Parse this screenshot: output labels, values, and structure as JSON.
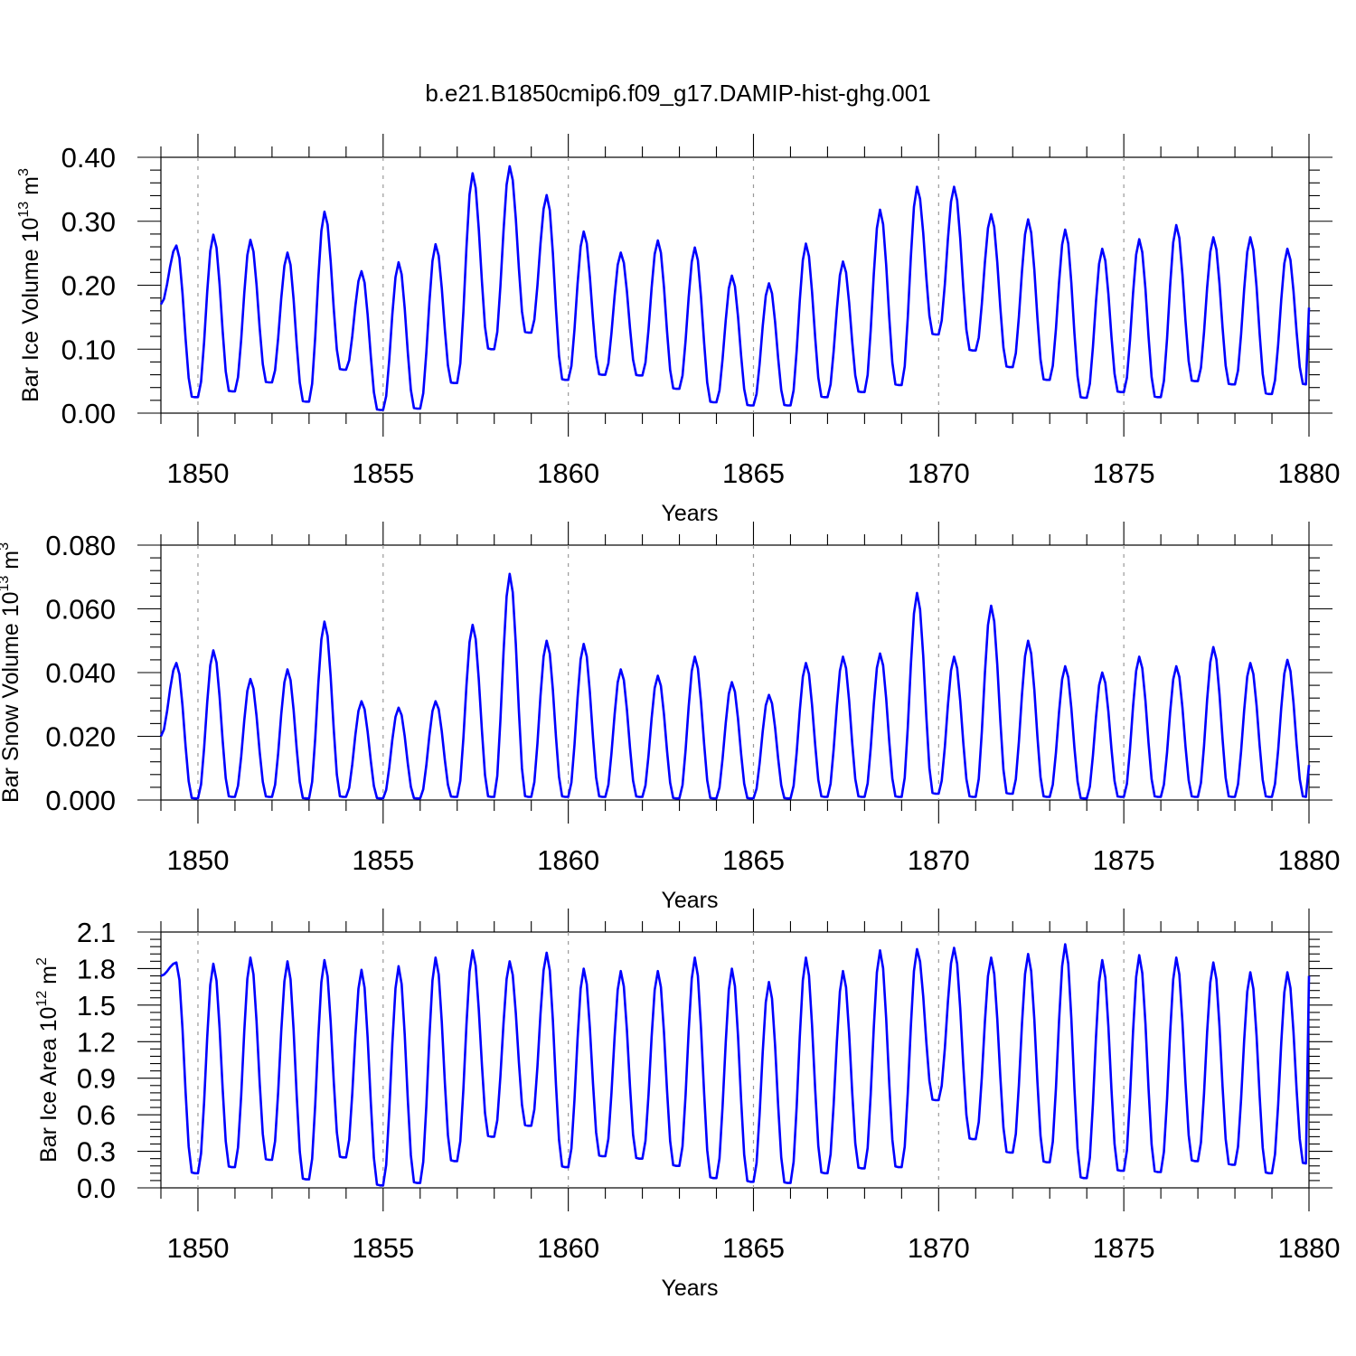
{
  "title": "b.e21.B1850cmip6.f09_g17.DAMIP-hist-ghg.001",
  "colors": {
    "series": "#0000ff",
    "grid": "#9a9a9a",
    "frame": "#000000"
  },
  "chart_data": [
    {
      "type": "line",
      "ylabel_main": "Bar Ice Volume 10",
      "ylabel_exp": "13",
      "ylabel_unit": " m",
      "ylabel_unit_exp": "3",
      "xlabel": "Years",
      "xlim": [
        1849.0,
        1880.0
      ],
      "ylim": [
        0.0,
        0.4
      ],
      "x_ticks": [
        1850,
        1855,
        1860,
        1865,
        1870,
        1875,
        1880
      ],
      "x_tick_labels": [
        "1850",
        "1855",
        "1860",
        "1865",
        "1870",
        "1875",
        "1880"
      ],
      "y_ticks": [
        0.0,
        0.1,
        0.2,
        0.3,
        0.4
      ],
      "y_tick_labels": [
        "0.00",
        "0.10",
        "0.20",
        "0.30",
        "0.40"
      ],
      "grid": "vertical dashed at major x ticks",
      "annual_max": [
        0.262,
        0.279,
        0.271,
        0.251,
        0.315,
        0.222,
        0.236,
        0.264,
        0.375,
        0.386,
        0.341,
        0.284,
        0.251,
        0.27,
        0.259,
        0.215,
        0.203,
        0.265,
        0.237,
        0.318,
        0.354,
        0.354,
        0.311,
        0.303,
        0.287,
        0.257,
        0.272,
        0.294,
        0.275,
        0.275,
        0.257
      ],
      "annual_min": [
        0.025,
        0.034,
        0.048,
        0.018,
        0.068,
        0.005,
        0.007,
        0.047,
        0.1,
        0.126,
        0.052,
        0.06,
        0.059,
        0.038,
        0.017,
        0.012,
        0.012,
        0.025,
        0.033,
        0.044,
        0.123,
        0.098,
        0.072,
        0.052,
        0.024,
        0.033,
        0.025,
        0.05,
        0.045,
        0.03,
        0.045
      ],
      "start_value": 0.17,
      "end_value": 0.165
    },
    {
      "type": "line",
      "ylabel_main": "Bar Snow Volume 10",
      "ylabel_exp": "13",
      "ylabel_unit": " m",
      "ylabel_unit_exp": "3",
      "xlabel": "Years",
      "xlim": [
        1849.0,
        1880.0
      ],
      "ylim": [
        0.0,
        0.08
      ],
      "x_ticks": [
        1850,
        1855,
        1860,
        1865,
        1870,
        1875,
        1880
      ],
      "x_tick_labels": [
        "1850",
        "1855",
        "1860",
        "1865",
        "1870",
        "1875",
        "1880"
      ],
      "y_ticks": [
        0.0,
        0.02,
        0.04,
        0.06,
        0.08
      ],
      "y_tick_labels": [
        "0.000",
        "0.020",
        "0.040",
        "0.060",
        "0.080"
      ],
      "grid": "vertical dashed at major x ticks",
      "annual_max": [
        0.043,
        0.047,
        0.038,
        0.041,
        0.056,
        0.031,
        0.029,
        0.031,
        0.055,
        0.071,
        0.05,
        0.049,
        0.041,
        0.039,
        0.045,
        0.037,
        0.033,
        0.043,
        0.045,
        0.046,
        0.065,
        0.045,
        0.061,
        0.05,
        0.042,
        0.04,
        0.045,
        0.042,
        0.048,
        0.043,
        0.044
      ],
      "annual_min": [
        0.0005,
        0.001,
        0.001,
        0.0005,
        0.001,
        0.0005,
        0.0005,
        0.001,
        0.001,
        0.001,
        0.001,
        0.001,
        0.001,
        0.0005,
        0.0005,
        0.0005,
        0.0005,
        0.001,
        0.001,
        0.001,
        0.002,
        0.001,
        0.002,
        0.001,
        0.0005,
        0.001,
        0.001,
        0.001,
        0.001,
        0.001,
        0.001
      ],
      "start_value": 0.02,
      "end_value": 0.011
    },
    {
      "type": "line",
      "ylabel_main": "Bar Ice Area 10",
      "ylabel_exp": "12",
      "ylabel_unit": " m",
      "ylabel_unit_exp": "2",
      "xlabel": "Years",
      "xlim": [
        1849.0,
        1880.0
      ],
      "ylim": [
        0.0,
        2.1
      ],
      "x_ticks": [
        1850,
        1855,
        1860,
        1865,
        1870,
        1875,
        1880
      ],
      "x_tick_labels": [
        "1850",
        "1855",
        "1860",
        "1865",
        "1870",
        "1875",
        "1880"
      ],
      "y_ticks": [
        0.0,
        0.3,
        0.6,
        0.9,
        1.2,
        1.5,
        1.8,
        2.1
      ],
      "y_tick_labels": [
        "0.0",
        "0.3",
        "0.6",
        "0.9",
        "1.2",
        "1.5",
        "1.8",
        "2.1"
      ],
      "grid": "vertical dashed at major x ticks",
      "annual_max": [
        1.85,
        1.84,
        1.89,
        1.86,
        1.87,
        1.79,
        1.82,
        1.89,
        1.95,
        1.86,
        1.93,
        1.8,
        1.78,
        1.78,
        1.89,
        1.8,
        1.69,
        1.89,
        1.78,
        1.95,
        1.96,
        1.97,
        1.89,
        1.92,
        2.0,
        1.87,
        1.91,
        1.89,
        1.85,
        1.77,
        1.77
      ],
      "annual_min": [
        0.12,
        0.17,
        0.23,
        0.07,
        0.25,
        0.02,
        0.04,
        0.22,
        0.42,
        0.51,
        0.17,
        0.26,
        0.24,
        0.18,
        0.08,
        0.05,
        0.04,
        0.12,
        0.16,
        0.17,
        0.72,
        0.4,
        0.29,
        0.21,
        0.08,
        0.14,
        0.13,
        0.22,
        0.19,
        0.12,
        0.2
      ],
      "start_value": 1.74,
      "end_value": 1.74
    }
  ]
}
